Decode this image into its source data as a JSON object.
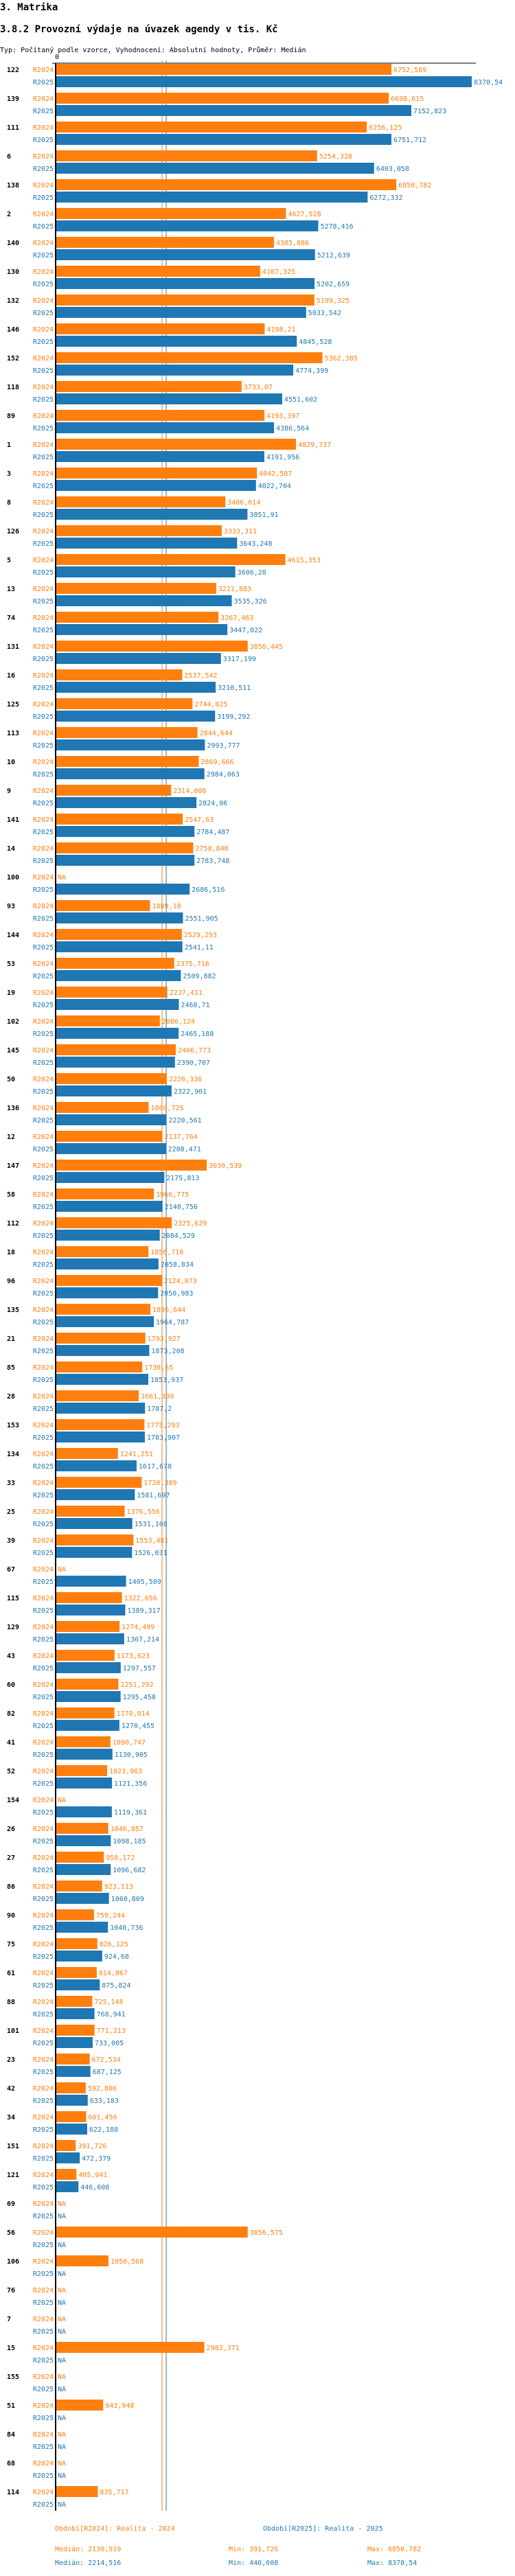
{
  "header": {
    "section": "3. Matrika",
    "title": "3.8.2 Provozní výdaje na úvazek agendy v tis. Kč",
    "subtitle": "Typ: Počítaný podle vzorce, Vyhodnocení: Absolutní hodnoty, Průměr: Medián"
  },
  "colors": {
    "r2024": "#ff7f0e",
    "r2025": "#1f77b4",
    "axis": "#000000"
  },
  "chart_data": {
    "type": "bar",
    "orientation": "horizontal",
    "title": "3.8.2 Provozní výdaje na úvazek agendy v tis. Kč",
    "x_tick_labels": [
      "0"
    ],
    "xlim": [
      0,
      8370.54
    ],
    "series_labels": [
      "R2024",
      "R2025"
    ],
    "na_label": "NA",
    "categories": [
      "122",
      "139",
      "111",
      "6",
      "138",
      "2",
      "140",
      "130",
      "132",
      "146",
      "152",
      "118",
      "89",
      "1",
      "3",
      "8",
      "126",
      "5",
      "13",
      "74",
      "131",
      "16",
      "125",
      "113",
      "10",
      "9",
      "141",
      "14",
      "100",
      "93",
      "144",
      "53",
      "19",
      "102",
      "145",
      "50",
      "136",
      "12",
      "147",
      "58",
      "112",
      "18",
      "96",
      "135",
      "21",
      "85",
      "28",
      "153",
      "134",
      "33",
      "25",
      "39",
      "67",
      "115",
      "129",
      "43",
      "60",
      "82",
      "41",
      "52",
      "154",
      "26",
      "27",
      "86",
      "90",
      "75",
      "61",
      "88",
      "101",
      "23",
      "42",
      "34",
      "151",
      "121",
      "69",
      "56",
      "106",
      "76",
      "7",
      "15",
      "155",
      "51",
      "84",
      "68",
      "114"
    ],
    "series": [
      {
        "name": "R2024",
        "values": [
          6752.589,
          6698.615,
          6256.125,
          5254.328,
          6850.782,
          4627.528,
          4385.086,
          4107.325,
          5199.325,
          4198.21,
          5362.385,
          3733.07,
          4193.397,
          4829.737,
          4042.507,
          3406.014,
          3333.311,
          4615.353,
          3221.883,
          3267.463,
          3856.445,
          2537.542,
          2744.025,
          2844.644,
          2869.666,
          2314.008,
          2547.63,
          2758.848,
          null,
          1889.18,
          2529.293,
          2375.716,
          2237.411,
          2086.124,
          2406.773,
          2226.336,
          1860.725,
          2137.764,
          3030.539,
          1966.775,
          2325.629,
          1856.716,
          2124.073,
          1896.644,
          1793.927,
          1730.65,
          1661.309,
          1775.293,
          1241.251,
          1720.389,
          1376.556,
          1553.481,
          null,
          1322.056,
          1274.499,
          1173.623,
          1251.292,
          1170.014,
          1090.747,
          1023.963,
          null,
          1046.857,
          958.172,
          923.113,
          759.244,
          826.125,
          814.867,
          725.148,
          771.213,
          672.534,
          592.806,
          601.456,
          391.726,
          405.941,
          null,
          3856.575,
          1050.568,
          null,
          null,
          2982.371,
          null,
          943.948,
          null,
          null,
          835.717
        ]
      },
      {
        "name": "R2025",
        "values": [
          8370.54,
          7152.823,
          6751.712,
          6403.058,
          6272.332,
          5278.416,
          5212.639,
          5202.659,
          5033.542,
          4845.528,
          4774.399,
          4551.602,
          4386.564,
          4191.956,
          4022.704,
          3851.91,
          3643.248,
          3606.28,
          3535.326,
          3447.022,
          3317.199,
          3210.511,
          3199.292,
          2993.777,
          2984.063,
          2824.06,
          2784.487,
          2783.748,
          2686.516,
          2551.905,
          2541.11,
          2509.882,
          2468.71,
          2465.188,
          2390.707,
          2322.901,
          2220.561,
          2208.471,
          2175.813,
          2140.756,
          2084.529,
          2058.834,
          2050.983,
          1964.787,
          1873.208,
          1853.937,
          1787.2,
          1783.907,
          1617.678,
          1581.697,
          1531.108,
          1526.031,
          1405.509,
          1389.317,
          1367.214,
          1297.557,
          1295.458,
          1270.455,
          1130.905,
          1121.356,
          1119.361,
          1098.185,
          1096.682,
          1060.809,
          1040.736,
          924.68,
          875.824,
          768.941,
          733.005,
          687.125,
          633.183,
          622.188,
          472.379,
          446.608,
          null,
          null,
          null,
          null,
          null,
          null,
          null,
          null,
          null,
          null,
          null
        ]
      }
    ],
    "reference_lines": [
      {
        "series": "R2024",
        "type": "median",
        "value": 2130.919
      },
      {
        "series": "R2025",
        "type": "median",
        "value": 2214.516
      }
    ],
    "legend": {
      "position": "bottom",
      "r2024": "Období[R2024]: Realita - 2024",
      "r2025": "Období[R2025]: Realita - 2025"
    },
    "stats": {
      "r2024": {
        "median": "Medián: 2130,919",
        "min": "Min: 391,726",
        "max": "Max: 6850,782"
      },
      "r2025": {
        "median": "Medián: 2214,516",
        "min": "Min: 446,608",
        "max": "Max: 8370,54"
      }
    }
  }
}
